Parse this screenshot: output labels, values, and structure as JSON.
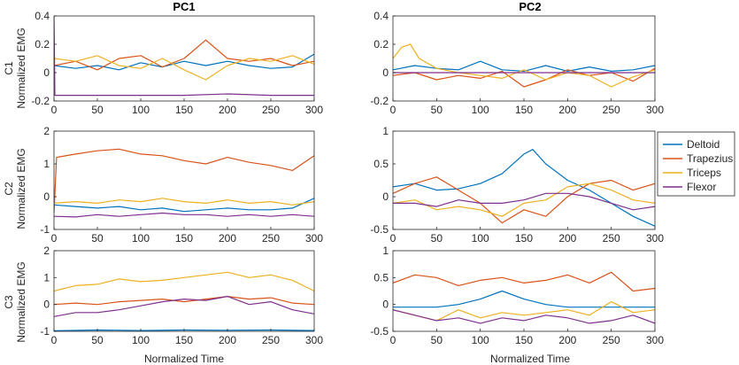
{
  "chart_data": {
    "type": "line",
    "column_titles": [
      "PC1",
      "PC2"
    ],
    "row_labels": [
      "C1",
      "C2",
      "C3"
    ],
    "ylabel": "Normalized EMG",
    "xlabel": "Normalized Time",
    "xlim": [
      0,
      300
    ],
    "xticks": [
      0,
      50,
      100,
      150,
      200,
      250,
      300
    ],
    "legend": {
      "position": "right",
      "entries": [
        {
          "name": "Deltoid",
          "color": "#0072BD"
        },
        {
          "name": "Trapezius",
          "color": "#D95319"
        },
        {
          "name": "Triceps",
          "color": "#EDB120"
        },
        {
          "name": "Flexor",
          "color": "#7E2F8E"
        }
      ]
    },
    "panels": [
      {
        "row": 0,
        "col": 0,
        "ylim": [
          -0.2,
          0.4
        ],
        "yticks": [
          -0.2,
          0,
          0.2,
          0.4
        ],
        "series": {
          "Deltoid": {
            "x": [
              0,
              25,
              50,
              75,
              100,
              125,
              150,
              175,
              200,
              225,
              250,
              275,
              300
            ],
            "y": [
              0.05,
              0.03,
              0.05,
              0.02,
              0.07,
              0.04,
              0.08,
              0.05,
              0.08,
              0.05,
              0.03,
              0.04,
              0.13
            ]
          },
          "Trapezius": {
            "x": [
              0,
              25,
              50,
              75,
              100,
              125,
              150,
              175,
              200,
              225,
              250,
              275,
              300
            ],
            "y": [
              0.05,
              0.08,
              0.02,
              0.1,
              0.12,
              0.04,
              0.1,
              0.23,
              0.1,
              0.08,
              0.1,
              0.05,
              0.08
            ]
          },
          "Triceps": {
            "x": [
              0,
              25,
              50,
              75,
              100,
              125,
              150,
              175,
              200,
              225,
              250,
              275,
              300
            ],
            "y": [
              0.1,
              0.08,
              0.12,
              0.05,
              0.03,
              0.1,
              0.02,
              -0.05,
              0.05,
              0.1,
              0.08,
              0.12,
              0.06
            ]
          },
          "Flexor": {
            "x": [
              0,
              1,
              5,
              50,
              100,
              150,
              200,
              250,
              300
            ],
            "y": [
              0.4,
              -0.16,
              -0.16,
              -0.16,
              -0.16,
              -0.16,
              -0.15,
              -0.16,
              -0.16
            ]
          }
        }
      },
      {
        "row": 0,
        "col": 1,
        "ylim": [
          -0.2,
          0.4
        ],
        "yticks": [
          -0.2,
          0,
          0.2,
          0.4
        ],
        "series": {
          "Deltoid": {
            "x": [
              0,
              25,
              50,
              75,
              100,
              125,
              150,
              175,
              200,
              225,
              250,
              275,
              300
            ],
            "y": [
              0.02,
              0.05,
              0.03,
              0.02,
              0.08,
              0.02,
              0.01,
              0.05,
              0.01,
              0.04,
              0.01,
              0.02,
              0.05
            ]
          },
          "Trapezius": {
            "x": [
              0,
              25,
              50,
              75,
              100,
              125,
              150,
              175,
              200,
              225,
              250,
              275,
              300
            ],
            "y": [
              -0.02,
              0.0,
              -0.05,
              -0.02,
              -0.04,
              0.01,
              -0.1,
              -0.05,
              0.02,
              -0.02,
              0.0,
              -0.06,
              0.03
            ]
          },
          "Triceps": {
            "x": [
              0,
              10,
              20,
              30,
              50,
              75,
              100,
              125,
              150,
              175,
              200,
              225,
              250,
              275,
              300
            ],
            "y": [
              0.1,
              0.18,
              0.2,
              0.1,
              0.03,
              0.0,
              -0.02,
              -0.04,
              0.02,
              -0.05,
              0.0,
              -0.02,
              -0.1,
              -0.03,
              0.02
            ]
          },
          "Flexor": {
            "x": [
              0,
              100,
              200,
              300
            ],
            "y": [
              0.0,
              0.0,
              0.0,
              0.0
            ]
          }
        }
      },
      {
        "row": 1,
        "col": 0,
        "ylim": [
          -1,
          2
        ],
        "yticks": [
          -1,
          0,
          1,
          2
        ],
        "series": {
          "Deltoid": {
            "x": [
              0,
              25,
              50,
              75,
              100,
              125,
              150,
              175,
              200,
              225,
              250,
              275,
              300
            ],
            "y": [
              -0.25,
              -0.3,
              -0.35,
              -0.3,
              -0.4,
              -0.35,
              -0.45,
              -0.4,
              -0.35,
              -0.4,
              -0.4,
              -0.35,
              -0.05
            ]
          },
          "Trapezius": {
            "x": [
              0,
              3,
              25,
              50,
              75,
              100,
              125,
              150,
              175,
              200,
              225,
              250,
              275,
              300
            ],
            "y": [
              -0.5,
              1.2,
              1.3,
              1.4,
              1.45,
              1.3,
              1.25,
              1.1,
              1.0,
              1.2,
              1.05,
              0.95,
              0.8,
              1.25
            ]
          },
          "Triceps": {
            "x": [
              0,
              25,
              50,
              75,
              100,
              125,
              150,
              175,
              200,
              225,
              250,
              275,
              300
            ],
            "y": [
              -0.2,
              -0.15,
              -0.2,
              -0.1,
              -0.15,
              -0.05,
              -0.15,
              -0.2,
              -0.1,
              -0.2,
              -0.15,
              -0.25,
              -0.15
            ]
          },
          "Flexor": {
            "x": [
              0,
              25,
              50,
              75,
              100,
              125,
              150,
              175,
              200,
              225,
              250,
              275,
              300
            ],
            "y": [
              -0.6,
              -0.62,
              -0.55,
              -0.6,
              -0.55,
              -0.5,
              -0.55,
              -0.55,
              -0.6,
              -0.55,
              -0.6,
              -0.55,
              -0.6
            ]
          }
        }
      },
      {
        "row": 1,
        "col": 1,
        "ylim": [
          -0.5,
          1
        ],
        "yticks": [
          -0.5,
          0,
          0.5,
          1
        ],
        "series": {
          "Deltoid": {
            "x": [
              0,
              25,
              50,
              75,
              100,
              125,
              150,
              160,
              175,
              200,
              225,
              250,
              275,
              300
            ],
            "y": [
              0.15,
              0.2,
              0.1,
              0.12,
              0.2,
              0.35,
              0.65,
              0.72,
              0.5,
              0.25,
              0.1,
              -0.1,
              -0.3,
              -0.45
            ]
          },
          "Trapezius": {
            "x": [
              0,
              25,
              50,
              75,
              100,
              125,
              150,
              175,
              200,
              225,
              250,
              275,
              300
            ],
            "y": [
              0.05,
              0.2,
              0.3,
              0.1,
              -0.1,
              -0.4,
              -0.2,
              -0.3,
              0.0,
              0.2,
              0.25,
              0.1,
              0.2
            ]
          },
          "Triceps": {
            "x": [
              0,
              25,
              50,
              75,
              100,
              125,
              150,
              175,
              200,
              225,
              250,
              275,
              300
            ],
            "y": [
              -0.1,
              -0.05,
              -0.2,
              -0.15,
              -0.2,
              -0.3,
              -0.1,
              -0.05,
              0.15,
              0.2,
              0.1,
              -0.05,
              -0.1
            ]
          },
          "Flexor": {
            "x": [
              0,
              25,
              50,
              75,
              100,
              125,
              150,
              175,
              200,
              225,
              250,
              275,
              300
            ],
            "y": [
              -0.1,
              -0.1,
              -0.15,
              -0.05,
              -0.1,
              -0.1,
              -0.05,
              0.05,
              0.05,
              0.0,
              -0.1,
              -0.2,
              -0.15
            ]
          }
        }
      },
      {
        "row": 2,
        "col": 0,
        "ylim": [
          -1,
          2
        ],
        "yticks": [
          -1,
          0,
          1,
          2
        ],
        "series": {
          "Deltoid": {
            "x": [
              0,
              50,
              100,
              150,
              200,
              250,
              300
            ],
            "y": [
              -0.98,
              -0.95,
              -0.97,
              -0.95,
              -0.96,
              -0.95,
              -0.97
            ]
          },
          "Trapezius": {
            "x": [
              0,
              25,
              50,
              75,
              100,
              125,
              150,
              175,
              200,
              225,
              250,
              275,
              300
            ],
            "y": [
              0.0,
              0.05,
              0.0,
              0.1,
              0.15,
              0.2,
              0.1,
              0.2,
              0.3,
              0.2,
              0.25,
              0.05,
              0.0
            ]
          },
          "Triceps": {
            "x": [
              0,
              25,
              50,
              75,
              100,
              125,
              150,
              175,
              200,
              225,
              250,
              275,
              300
            ],
            "y": [
              0.5,
              0.7,
              0.75,
              0.95,
              0.85,
              0.9,
              1.0,
              1.1,
              1.2,
              1.0,
              1.1,
              0.9,
              0.5
            ]
          },
          "Flexor": {
            "x": [
              0,
              25,
              50,
              75,
              100,
              125,
              150,
              175,
              200,
              225,
              250,
              275,
              300
            ],
            "y": [
              -0.45,
              -0.3,
              -0.3,
              -0.2,
              -0.05,
              0.1,
              0.2,
              0.15,
              0.3,
              0.0,
              0.1,
              -0.2,
              -0.35
            ]
          }
        }
      },
      {
        "row": 2,
        "col": 1,
        "ylim": [
          -0.5,
          1
        ],
        "yticks": [
          -0.5,
          0,
          0.5,
          1
        ],
        "series": {
          "Deltoid": {
            "x": [
              0,
              25,
              50,
              75,
              100,
              125,
              150,
              175,
              200,
              225,
              250,
              275,
              300
            ],
            "y": [
              -0.05,
              -0.05,
              -0.05,
              0.0,
              0.1,
              0.25,
              0.1,
              0.0,
              -0.05,
              -0.05,
              -0.05,
              -0.05,
              -0.05
            ]
          },
          "Trapezius": {
            "x": [
              0,
              25,
              50,
              75,
              100,
              125,
              150,
              175,
              200,
              225,
              250,
              275,
              300
            ],
            "y": [
              0.4,
              0.55,
              0.5,
              0.35,
              0.45,
              0.5,
              0.4,
              0.45,
              0.55,
              0.4,
              0.6,
              0.25,
              0.3
            ]
          },
          "Triceps": {
            "x": [
              0,
              25,
              50,
              75,
              100,
              125,
              150,
              175,
              200,
              225,
              250,
              275,
              300
            ],
            "y": [
              -0.1,
              -0.2,
              -0.3,
              -0.1,
              -0.25,
              -0.15,
              -0.2,
              -0.15,
              -0.1,
              -0.2,
              0.05,
              -0.15,
              -0.1
            ]
          },
          "Flexor": {
            "x": [
              0,
              25,
              50,
              75,
              100,
              125,
              150,
              175,
              200,
              225,
              250,
              275,
              300
            ],
            "y": [
              -0.1,
              -0.2,
              -0.3,
              -0.25,
              -0.35,
              -0.25,
              -0.3,
              -0.2,
              -0.25,
              -0.35,
              -0.3,
              -0.2,
              -0.35
            ]
          }
        }
      }
    ]
  }
}
